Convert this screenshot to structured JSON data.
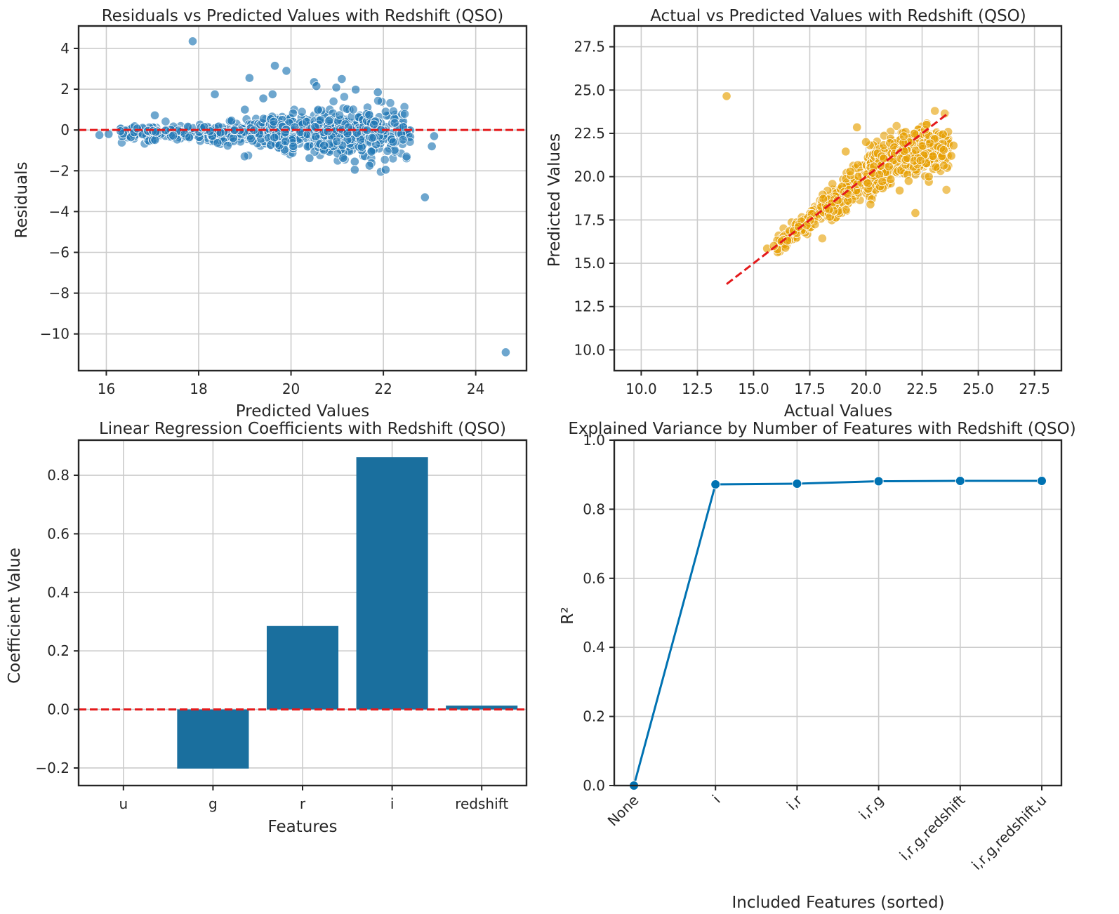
{
  "chart_data": [
    {
      "type": "scatter",
      "title": "Residuals vs Predicted Values with Redshift (QSO)",
      "xlabel": "Predicted Values",
      "ylabel": "Residuals",
      "xlim": [
        15.4,
        25.1
      ],
      "ylim": [
        -11.8,
        5.1
      ],
      "xticks": [
        16,
        18,
        20,
        22,
        24
      ],
      "yticks": [
        4,
        2,
        0,
        -2,
        -4,
        -6,
        -8,
        -10
      ],
      "ytick_labels": [
        "4",
        "2",
        "0",
        "−2",
        "−4",
        "−6",
        "−8",
        "−10"
      ],
      "grid": true,
      "color": "#1f77b4",
      "reference_line": {
        "y": 0,
        "color": "#e41a1c",
        "style": "dashed"
      },
      "points": [
        [
          17.87,
          4.35
        ],
        [
          19.65,
          3.15
        ],
        [
          19.9,
          2.9
        ],
        [
          19.1,
          2.55
        ],
        [
          21.1,
          2.5
        ],
        [
          20.5,
          2.35
        ],
        [
          20.55,
          2.15
        ],
        [
          20.98,
          2.08
        ],
        [
          21.4,
          1.98
        ],
        [
          18.35,
          1.75
        ],
        [
          19.6,
          1.75
        ],
        [
          21.88,
          1.85
        ],
        [
          19.4,
          1.55
        ],
        [
          17.05,
          0.72
        ],
        [
          19.0,
          1.0
        ],
        [
          15.85,
          -0.25
        ],
        [
          16.05,
          -0.2
        ],
        [
          21.38,
          -1.55
        ],
        [
          21.38,
          -1.95
        ],
        [
          21.7,
          -1.75
        ],
        [
          22.05,
          -1.95
        ],
        [
          20.4,
          -1.38
        ],
        [
          20.05,
          -0.8
        ],
        [
          22.9,
          -3.3
        ],
        [
          23.05,
          -0.8
        ],
        [
          23.1,
          -0.3
        ],
        [
          24.65,
          -10.9
        ]
      ],
      "cloud_segments": [
        {
          "x": [
            16.3,
            18.0
          ],
          "spread": 0.18,
          "n": 120
        },
        {
          "x": [
            18.0,
            19.5
          ],
          "spread": 0.28,
          "n": 180
        },
        {
          "x": [
            19.5,
            20.5
          ],
          "spread": 0.4,
          "n": 240
        },
        {
          "x": [
            20.5,
            21.6
          ],
          "spread": 0.55,
          "n": 280
        },
        {
          "x": [
            21.6,
            22.6
          ],
          "spread": 0.5,
          "n": 110
        }
      ]
    },
    {
      "type": "scatter",
      "title": "Actual vs Predicted Values with Redshift (QSO)",
      "xlabel": "Actual Values",
      "ylabel": "Predicted Values",
      "xlim": [
        8.8,
        28.7
      ],
      "ylim": [
        8.8,
        28.7
      ],
      "xticks": [
        10.0,
        12.5,
        15.0,
        17.5,
        20.0,
        22.5,
        25.0,
        27.5
      ],
      "yticks": [
        10.0,
        12.5,
        15.0,
        17.5,
        20.0,
        22.5,
        25.0,
        27.5
      ],
      "tick_labels": [
        "10.0",
        "12.5",
        "15.0",
        "17.5",
        "20.0",
        "22.5",
        "25.0",
        "27.5"
      ],
      "grid": true,
      "color": "#e69f00",
      "reference_line": {
        "x": [
          13.8,
          23.7
        ],
        "y": [
          13.8,
          23.7
        ],
        "color": "#e41a1c",
        "style": "dashed"
      },
      "points": [
        [
          13.8,
          24.65
        ],
        [
          19.6,
          22.85
        ],
        [
          19.1,
          21.45
        ],
        [
          20.2,
          18.4
        ],
        [
          22.2,
          17.9
        ],
        [
          21.5,
          19.2
        ],
        [
          22.8,
          19.7
        ],
        [
          22.8,
          20.0
        ],
        [
          20.0,
          22.0
        ],
        [
          22.7,
          23.0
        ],
        [
          23.9,
          21.8
        ],
        [
          23.8,
          21.2
        ],
        [
          17.0,
          17.1
        ],
        [
          15.6,
          15.85
        ],
        [
          15.9,
          16.0
        ],
        [
          19.3,
          20.3
        ],
        [
          21.1,
          19.85
        ],
        [
          21.9,
          19.75
        ]
      ],
      "cloud_segments": [
        {
          "x": [
            16.0,
            18.0
          ],
          "spread": 0.3,
          "n": 110
        },
        {
          "x": [
            18.0,
            20.0
          ],
          "spread": 0.5,
          "n": 200
        },
        {
          "x": [
            20.0,
            21.5
          ],
          "spread": 0.65,
          "n": 260
        },
        {
          "x": [
            21.5,
            23.7
          ],
          "spread": 0.75,
          "n": 240
        }
      ]
    },
    {
      "type": "bar",
      "title": "Linear Regression Coefficients with Redshift (QSO)",
      "xlabel": "Features",
      "ylabel": "Coefficient Value",
      "categories": [
        "u",
        "g",
        "r",
        "i",
        "redshift"
      ],
      "values": [
        0.0,
        -0.202,
        0.285,
        0.862,
        0.013
      ],
      "ylim": [
        -0.26,
        0.92
      ],
      "yticks": [
        0.8,
        0.6,
        0.4,
        0.2,
        0.0,
        -0.2
      ],
      "ytick_labels": [
        "0.8",
        "0.6",
        "0.4",
        "0.2",
        "0.0",
        "−0.2"
      ],
      "grid": true,
      "color": "#1a6f9e",
      "reference_line": {
        "y": 0,
        "color": "#e41a1c",
        "style": "dashed"
      }
    },
    {
      "type": "line",
      "title": "Explained Variance by Number of Features with Redshift (QSO)",
      "xlabel": "Included Features (sorted)",
      "ylabel": "R²",
      "categories": [
        "None",
        "i",
        "i,r",
        "i,r,g",
        "i,r,g,redshift",
        "i,r,g,redshift,u"
      ],
      "values": [
        0.0,
        0.872,
        0.874,
        0.881,
        0.882,
        0.882
      ],
      "ylim": [
        0.0,
        1.0
      ],
      "yticks": [
        0.0,
        0.2,
        0.4,
        0.6,
        0.8,
        1.0
      ],
      "ytick_labels": [
        "0.0",
        "0.2",
        "0.4",
        "0.6",
        "0.8",
        "1.0"
      ],
      "xtick_rotation": 45,
      "grid": true,
      "color": "#0072b2",
      "marker": "circle"
    }
  ]
}
